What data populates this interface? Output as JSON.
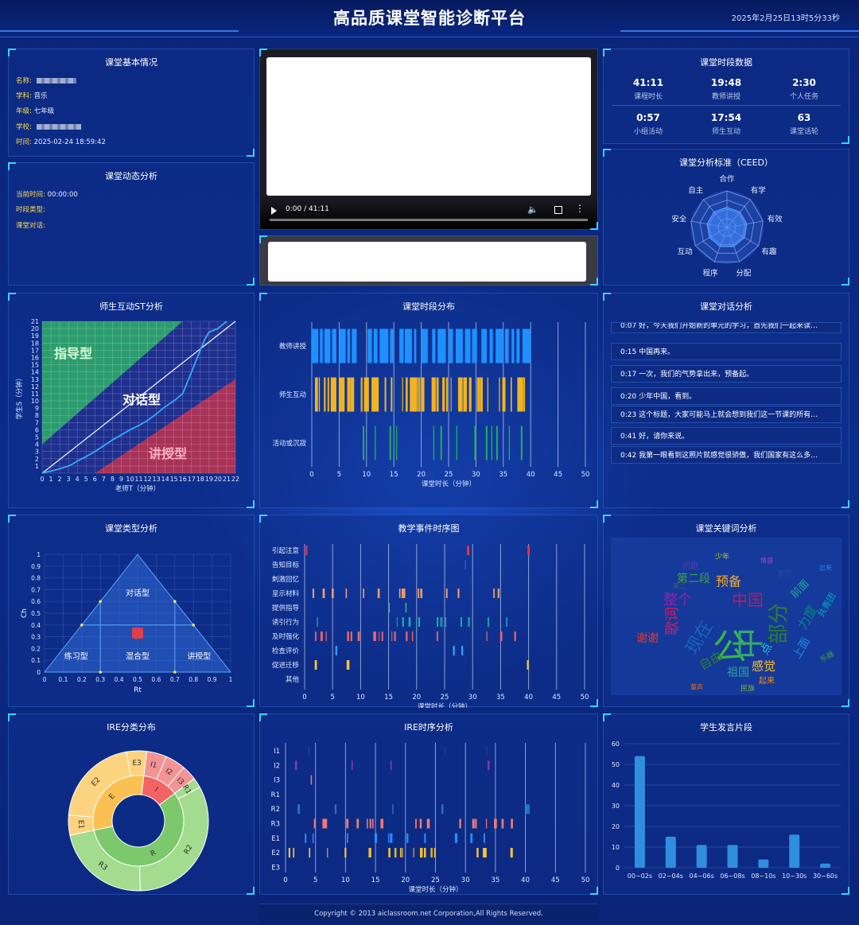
{
  "header": {
    "title": "高品质课堂智能诊断平台",
    "datetime": "2025年2月25日13时5分33秒"
  },
  "basic": {
    "title": "课堂基本情况",
    "rows": [
      {
        "k": "名称:",
        "v": ""
      },
      {
        "k": "学科:",
        "v": "音乐"
      },
      {
        "k": "年级:",
        "v": "七年级"
      },
      {
        "k": "学校:",
        "v": ""
      },
      {
        "k": "时间:",
        "v": "2025-02-24 18:59:42"
      }
    ]
  },
  "dynamic": {
    "title": "课堂动态分析",
    "rows": [
      {
        "k": "当前时间:",
        "v": "00:00:00"
      },
      {
        "k": "时段类型:",
        "v": ""
      },
      {
        "k": "课堂对话:",
        "v": ""
      }
    ]
  },
  "video": {
    "time": "0:00 / 41:11",
    "progress": 0
  },
  "period_data": {
    "title": "课堂时段数据",
    "stats": [
      {
        "v": "41:11",
        "l": "课程时长"
      },
      {
        "v": "19:48",
        "l": "教师讲授"
      },
      {
        "v": "2:30",
        "l": "个人任务"
      },
      {
        "v": "0:57",
        "l": "小组活动"
      },
      {
        "v": "17:54",
        "l": "师生互动"
      },
      {
        "v": "63",
        "l": "课堂话轮"
      }
    ]
  },
  "ceed": {
    "title": "课堂分析标准（CEED）",
    "axes": [
      "合作",
      "有学",
      "有效",
      "有趣",
      "分配",
      "程序",
      "互动",
      "安全",
      "自主"
    ],
    "values": [
      0.55,
      0.55,
      0.55,
      0.55,
      0.55,
      0.55,
      0.55,
      0.55,
      0.55
    ]
  },
  "st": {
    "title": "师生互动ST分析",
    "xlabel": "老师T（分钟）",
    "ylabel": "学生S（分钟）",
    "zones": [
      "指导型",
      "对话型",
      "讲授型"
    ],
    "xmax": 22,
    "ymax": 21,
    "curve": [
      [
        0,
        0
      ],
      [
        1,
        0.3
      ],
      [
        2,
        0.6
      ],
      [
        3,
        1
      ],
      [
        3.5,
        1.3
      ],
      [
        4,
        1.7
      ],
      [
        5,
        2.3
      ],
      [
        6,
        3
      ],
      [
        7,
        3.8
      ],
      [
        8,
        4.6
      ],
      [
        9,
        5.3
      ],
      [
        10,
        6
      ],
      [
        11,
        6.6
      ],
      [
        12,
        7.3
      ],
      [
        13,
        8.2
      ],
      [
        14,
        9.2
      ],
      [
        15,
        10
      ],
      [
        16,
        11
      ],
      [
        16.5,
        12.5
      ],
      [
        17,
        14
      ],
      [
        17.5,
        15.5
      ],
      [
        18,
        17
      ],
      [
        18.5,
        18.5
      ],
      [
        19,
        19.5
      ],
      [
        20,
        20
      ],
      [
        21,
        21
      ]
    ]
  },
  "timeline": {
    "title": "课堂时段分布",
    "xlabel": "课堂时长（分钟）",
    "rows": [
      "教师讲授",
      "师生互动",
      "活动或沉寂"
    ],
    "colors": [
      "#1e90ff",
      "#f2b41f",
      "#1fae59"
    ],
    "xmax": 50,
    "ticks": [
      0,
      5,
      10,
      15,
      20,
      25,
      30,
      35,
      40,
      45,
      50
    ]
  },
  "dialogue": {
    "title": "课堂对话分析",
    "items": [
      "0:07 好，今天我们开始新的单元的学习，首先我们一起来读…",
      "0:15 中国再来。",
      "0:17 一次，我们的气势拿出来，预备起。",
      "0:20 少年中国，看到。",
      "0:23 这个标题，大家可能马上就会想到我们这一节课的所有…",
      "0:41 好，请你来说。",
      "0:42 我第一眼看到这照片就感觉很骄傲，我们国家有这么多…"
    ]
  },
  "classtype": {
    "title": "课堂类型分析",
    "xlabel": "Rt",
    "ylabel": "Ch",
    "regions": [
      "对话型",
      "练习型",
      "混合型",
      "讲授型"
    ],
    "point": [
      0.5,
      0.33
    ],
    "ticks": [
      0,
      0.1,
      0.2,
      0.3,
      0.4,
      0.5,
      0.6,
      0.7,
      0.8,
      0.9,
      1
    ]
  },
  "events": {
    "title": "教学事件时序图",
    "xlabel": "课堂时长（分钟）",
    "rows": [
      "引起注意",
      "告知目标",
      "刺激回忆",
      "呈示材料",
      "提供指导",
      "诱引行为",
      "及时强化",
      "检查评价",
      "促进迁移",
      "其他"
    ],
    "colors": [
      "#e8334a",
      "#1d5ad8",
      "#5b8cff",
      "#f09a6a",
      "#38c47a",
      "#1cb5a8",
      "#f0646a",
      "#3aa8ff",
      "#f7c531",
      "#888888"
    ],
    "xmax": 50,
    "ticks": [
      0,
      5,
      10,
      15,
      20,
      25,
      30,
      35,
      40,
      45,
      50
    ]
  },
  "keywords": {
    "title": "课堂关键词分析",
    "words": [
      {
        "t": "公",
        "c": "#39b34a",
        "s": 44
      },
      {
        "t": "中",
        "c": "#37a86a",
        "s": 40
      },
      {
        "t": "部分",
        "c": "#2e7d32",
        "s": 26
      },
      {
        "t": "中国",
        "c": "#c2185b",
        "s": 20
      },
      {
        "t": "现在",
        "c": "#1565c0",
        "s": 22
      },
      {
        "t": "歌词",
        "c": "#d81b60",
        "s": 18
      },
      {
        "t": "预备",
        "c": "#f9a825",
        "s": 16
      },
      {
        "t": "整个",
        "c": "#8e24aa",
        "s": 18
      },
      {
        "t": "第二段",
        "c": "#43a047",
        "s": 14
      },
      {
        "t": "感觉",
        "c": "#fbc02d",
        "s": 15
      },
      {
        "t": "祖国",
        "c": "#26a69a",
        "s": 14
      },
      {
        "t": "自由",
        "c": "#2e7d32",
        "s": 15
      },
      {
        "t": "力度",
        "c": "#00897b",
        "s": 16
      },
      {
        "t": "上面",
        "c": "#1e88e5",
        "s": 14
      },
      {
        "t": "谢谢",
        "c": "#e53935",
        "s": 14
      },
      {
        "t": "前面",
        "c": "#26a69a",
        "s": 13
      },
      {
        "t": "起来",
        "c": "#fb8c00",
        "s": 10
      },
      {
        "t": "民族",
        "c": "#7cb342",
        "s": 9
      },
      {
        "t": "童声",
        "c": "#ef6c00",
        "s": 8
      },
      {
        "t": "问题",
        "c": "#5e35b1",
        "s": 10
      },
      {
        "t": "学习",
        "c": "#3949ab",
        "s": 9
      },
      {
        "t": "乐器",
        "c": "#43a047",
        "s": 9
      },
      {
        "t": "共青团",
        "c": "#00acc1",
        "s": 11
      },
      {
        "t": "第二",
        "c": "#455a64",
        "s": 8
      },
      {
        "t": "情感",
        "c": "#ab47bc",
        "s": 8
      },
      {
        "t": "点",
        "c": "#26c6da",
        "s": 14
      },
      {
        "t": "少年",
        "c": "#c0ca33",
        "s": 9
      },
      {
        "t": "出来",
        "c": "#1e88e5",
        "s": 8
      }
    ]
  },
  "ire": {
    "title": "IRE分类分布",
    "inner": [
      {
        "label": "I",
        "value": 11,
        "color": "#f26363"
      },
      {
        "label": "R",
        "value": 49,
        "color": "#7cc96b"
      },
      {
        "label": "E",
        "value": 26,
        "color": "#fbc052"
      }
    ],
    "outer": [
      {
        "label": "I1",
        "value": 4,
        "color": "#f49393"
      },
      {
        "label": "I2",
        "value": 4,
        "color": "#f49393"
      },
      {
        "label": "I3",
        "value": 3,
        "color": "#f49393"
      },
      {
        "label": "R1",
        "value": 2,
        "color": "#a3dc8f"
      },
      {
        "label": "R2",
        "value": 28,
        "color": "#a3dc8f"
      },
      {
        "label": "R3",
        "value": 19,
        "color": "#a3dc8f"
      },
      {
        "label": "E1",
        "value": 4,
        "color": "#fcd37f"
      },
      {
        "label": "E2",
        "value": 18,
        "color": "#fcd37f"
      },
      {
        "label": "E3",
        "value": 4,
        "color": "#fcd37f"
      }
    ]
  },
  "ire_seq": {
    "title": "IRE时序分析",
    "xlabel": "课堂时长（分钟）",
    "rows": [
      "I1",
      "I2",
      "I3",
      "R1",
      "R2",
      "R3",
      "E1",
      "E2",
      "E3"
    ],
    "colors": [
      "#1f3a8a",
      "#8e3aa8",
      "#f07d52",
      "#1aa0c8",
      "#1e78c8",
      "#f07878",
      "#2a8cff",
      "#f7c531",
      "#6a6a6a"
    ],
    "xmax": 50,
    "ticks": [
      0,
      5,
      10,
      15,
      20,
      25,
      30,
      35,
      40,
      45,
      50
    ]
  },
  "student": {
    "title": "学生发言片段",
    "categories": [
      "00~02s",
      "02~04s",
      "04~06s",
      "06~08s",
      "08~10s",
      "10~30s",
      "30~60s"
    ],
    "values": [
      54,
      15,
      11,
      11,
      4,
      16,
      2
    ],
    "ymax": 60,
    "yticks": [
      0,
      10,
      20,
      30,
      40,
      50,
      60
    ]
  },
  "footer": {
    "text": "Copyright © 2013 aiclassroom.net Corporation,All Rights Reserved."
  }
}
